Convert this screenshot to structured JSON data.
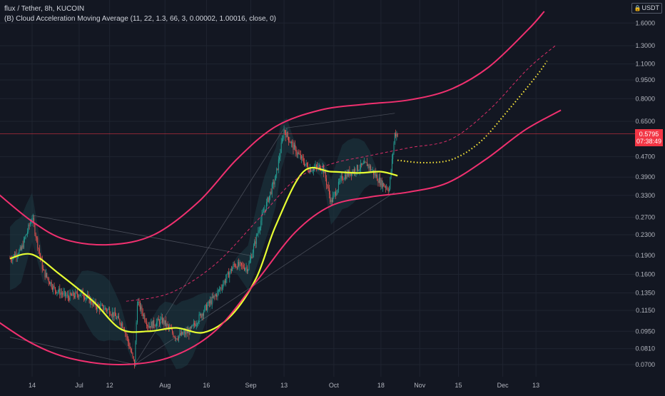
{
  "legend": {
    "title": "flux / Tether, 8h, KUCOIN",
    "indicator": "(B) Cloud Acceleration Moving Average (11, 22, 1.3, 66, 3, 0.00002, 1.00016, close, 0)"
  },
  "currency": "USDT",
  "currency_icon": "lock-icon",
  "colors": {
    "background": "#131722",
    "band": "#f0306f",
    "ma_yellow": "#e8ff33",
    "forecast_yellow": "#ffeb3b",
    "up_candle": "#26a69a",
    "down_candle": "#ef5350",
    "cloud": "#1d3a44",
    "price_tag": "#f23645"
  },
  "last_price": {
    "value": "0.5795",
    "countdown": "07:38:49"
  },
  "chart_data": {
    "type": "candlestick",
    "title": "flux / Tether, 8h, KUCOIN",
    "y_scale": "log",
    "ylim": [
      0.066,
      1.95
    ],
    "y_ticks": [
      "1.6000",
      "1.3000",
      "1.1000",
      "0.9500",
      "0.8000",
      "0.6500",
      "0.5795",
      "0.4700",
      "0.3900",
      "0.3300",
      "0.2700",
      "0.2300",
      "0.1900",
      "0.1600",
      "0.1350",
      "0.1150",
      "0.0950",
      "0.0810",
      "0.0700"
    ],
    "x_ticks": [
      "14",
      "Jul",
      "12",
      "Aug",
      "16",
      "Sep",
      "13",
      "Oct",
      "18",
      "Nov",
      "15",
      "Dec",
      "13"
    ],
    "close_path": [
      [
        "Jun 6",
        0.185
      ],
      [
        "Jun 10",
        0.2
      ],
      [
        "Jun 14",
        0.27
      ],
      [
        "Jun 18",
        0.165
      ],
      [
        "Jun 22",
        0.14
      ],
      [
        "Jun 27",
        0.13
      ],
      [
        "Jul 2",
        0.135
      ],
      [
        "Jul 7",
        0.12
      ],
      [
        "Jul 12",
        0.115
      ],
      [
        "Jul 17",
        0.1
      ],
      [
        "Jul 21",
        0.07
      ],
      [
        "Jul 22",
        0.125
      ],
      [
        "Jul 26",
        0.1
      ],
      [
        "Jul 31",
        0.105
      ],
      [
        "Aug 5",
        0.09
      ],
      [
        "Aug 10",
        0.095
      ],
      [
        "Aug 15",
        0.115
      ],
      [
        "Aug 20",
        0.135
      ],
      [
        "Aug 26",
        0.175
      ],
      [
        "Aug 31",
        0.17
      ],
      [
        "Sep 5",
        0.27
      ],
      [
        "Sep 10",
        0.39
      ],
      [
        "Sep 13",
        0.6
      ],
      [
        "Sep 17",
        0.5
      ],
      [
        "Sep 22",
        0.42
      ],
      [
        "Sep 27",
        0.43
      ],
      [
        "Sep 30",
        0.31
      ],
      [
        "Oct 4",
        0.39
      ],
      [
        "Oct 9",
        0.42
      ],
      [
        "Oct 13",
        0.44
      ],
      [
        "Oct 18",
        0.37
      ],
      [
        "Oct 21",
        0.35
      ],
      [
        "Oct 23",
        0.58
      ],
      [
        "Oct 24",
        0.5795
      ]
    ],
    "series": [
      {
        "role": "moving-average",
        "points": [
          [
            "Jun 6",
            0.185
          ],
          [
            "Jun 14",
            0.192
          ],
          [
            "Jun 24",
            0.16
          ],
          [
            "Jul 6",
            0.125
          ],
          [
            "Jul 16",
            0.097
          ],
          [
            "Jul 26",
            0.095
          ],
          [
            "Aug 5",
            0.098
          ],
          [
            "Aug 15",
            0.094
          ],
          [
            "Aug 25",
            0.11
          ],
          [
            "Sep 3",
            0.155
          ],
          [
            "Sep 10",
            0.25
          ],
          [
            "Sep 20",
            0.41
          ],
          [
            "Sep 30",
            0.41
          ],
          [
            "Oct 10",
            0.405
          ],
          [
            "Oct 18",
            0.41
          ],
          [
            "Oct 24",
            0.395
          ]
        ]
      },
      {
        "role": "upper-band",
        "points": [
          [
            "Jun 1",
            0.34
          ],
          [
            "Jun 14",
            0.26
          ],
          [
            "Jun 26",
            0.22
          ],
          [
            "Jul 12",
            0.21
          ],
          [
            "Jul 28",
            0.23
          ],
          [
            "Aug 13",
            0.31
          ],
          [
            "Aug 27",
            0.46
          ],
          [
            "Sep 10",
            0.62
          ],
          [
            "Sep 26",
            0.72
          ],
          [
            "Oct 12",
            0.76
          ],
          [
            "Oct 28",
            0.79
          ],
          [
            "Nov 12",
            0.87
          ],
          [
            "Nov 26",
            1.07
          ],
          [
            "Dec 10",
            1.5
          ],
          [
            "Dec 16",
            1.78
          ]
        ]
      },
      {
        "role": "lower-band",
        "points": [
          [
            "Jun 1",
            0.105
          ],
          [
            "Jun 14",
            0.085
          ],
          [
            "Jun 28",
            0.074
          ],
          [
            "Jul 16",
            0.07
          ],
          [
            "Aug 3",
            0.075
          ],
          [
            "Aug 19",
            0.095
          ],
          [
            "Sep 3",
            0.15
          ],
          [
            "Sep 17",
            0.235
          ],
          [
            "Sep 30",
            0.3
          ],
          [
            "Oct 14",
            0.325
          ],
          [
            "Oct 28",
            0.34
          ],
          [
            "Nov 11",
            0.37
          ],
          [
            "Nov 25",
            0.46
          ],
          [
            "Dec 9",
            0.6
          ],
          [
            "Dec 22",
            0.72
          ]
        ]
      },
      {
        "role": "mid-band",
        "points": [
          [
            "Jul 18",
            0.125
          ],
          [
            "Aug 3",
            0.135
          ],
          [
            "Aug 19",
            0.175
          ],
          [
            "Sep 3",
            0.26
          ],
          [
            "Sep 17",
            0.38
          ],
          [
            "Sep 30",
            0.44
          ],
          [
            "Oct 14",
            0.475
          ],
          [
            "Oct 28",
            0.51
          ],
          [
            "Nov 12",
            0.55
          ],
          [
            "Nov 26",
            0.72
          ],
          [
            "Dec 10",
            1.05
          ],
          [
            "Dec 20",
            1.3
          ]
        ]
      },
      {
        "role": "forecast",
        "points": [
          [
            "Oct 24",
            0.455
          ],
          [
            "Nov 3",
            0.445
          ],
          [
            "Nov 13",
            0.46
          ],
          [
            "Nov 23",
            0.54
          ],
          [
            "Dec 3",
            0.72
          ],
          [
            "Dec 13",
            0.98
          ],
          [
            "Dec 17",
            1.13
          ]
        ]
      }
    ],
    "grid": true,
    "legend_position": "top-left"
  }
}
